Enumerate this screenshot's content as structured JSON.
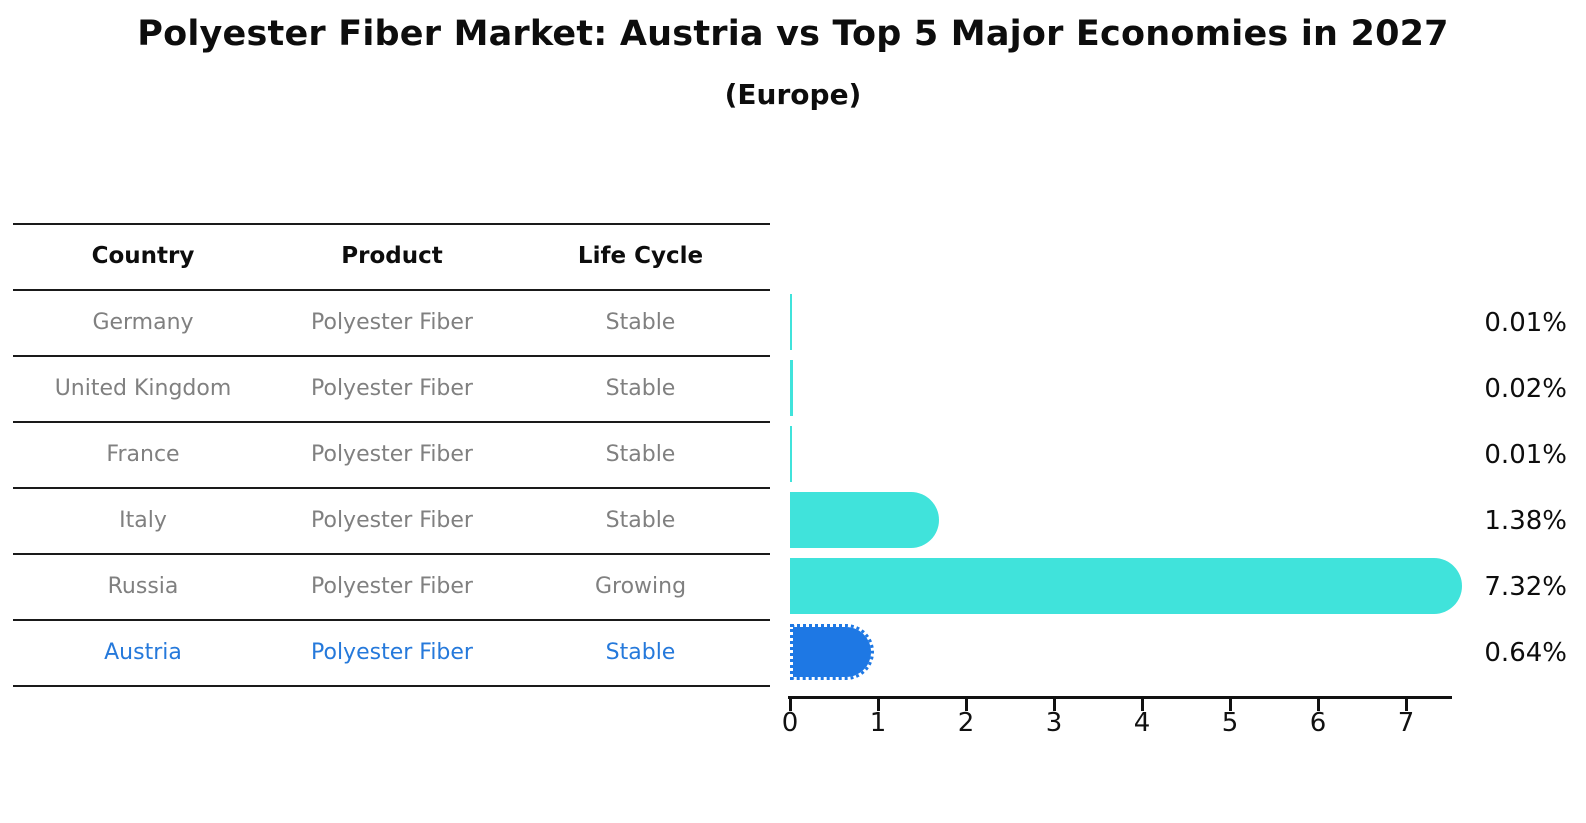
{
  "title": "Polyester Fiber Market: Austria vs Top 5 Major Economies in 2027",
  "subtitle": "(Europe)",
  "table": {
    "headers": [
      "Country",
      "Product",
      "Life Cycle"
    ],
    "rows": [
      {
        "country": "Germany",
        "product": "Polyester Fiber",
        "life_cycle": "Stable",
        "highlighted": false
      },
      {
        "country": "United Kingdom",
        "product": "Polyester Fiber",
        "life_cycle": "Stable",
        "highlighted": false
      },
      {
        "country": "France",
        "product": "Polyester Fiber",
        "life_cycle": "Stable",
        "highlighted": false
      },
      {
        "country": "Italy",
        "product": "Polyester Fiber",
        "life_cycle": "Stable",
        "highlighted": false
      },
      {
        "country": "Russia",
        "product": "Polyester Fiber",
        "life_cycle": "Growing",
        "highlighted": false
      },
      {
        "country": "Austria",
        "product": "Polyester Fiber",
        "life_cycle": "Stable",
        "highlighted": true
      }
    ]
  },
  "chart_data": {
    "type": "bar",
    "orientation": "horizontal",
    "title": "Polyester Fiber Market: Austria vs Top 5 Major Economies in 2027 (Europe)",
    "categories": [
      "Germany",
      "United Kingdom",
      "France",
      "Italy",
      "Russia",
      "Austria"
    ],
    "values": [
      0.01,
      0.02,
      0.01,
      1.38,
      7.32,
      0.64
    ],
    "value_labels": [
      "0.01%",
      "0.02%",
      "0.01%",
      "1.38%",
      "7.32%",
      "0.64%"
    ],
    "x_ticks": [
      "0",
      "1",
      "2",
      "3",
      "4",
      "5",
      "6",
      "7"
    ],
    "xlim": [
      0,
      7.5
    ],
    "grid": false,
    "legend": "none",
    "bar_color": "#40e3db",
    "highlight_color": "#1e78e4",
    "highlight_index": 5,
    "highlight_style": "dotted-border"
  },
  "colors": {
    "text": "#0d0d0d",
    "muted_text": "#808080",
    "highlight_text": "#2579db",
    "line": "#1a1a1a"
  }
}
